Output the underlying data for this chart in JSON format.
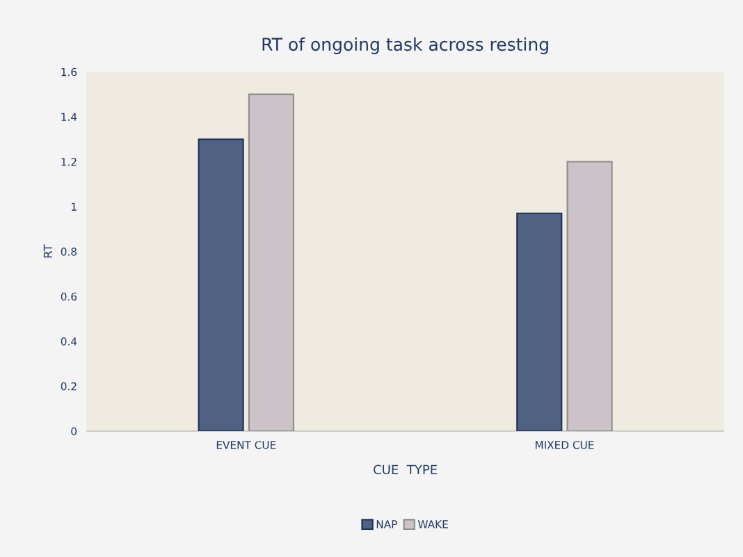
{
  "chart_data": {
    "type": "bar",
    "title": "RT of ongoing task across resting",
    "xlabel": "CUE  TYPE",
    "ylabel": "RT",
    "categories": [
      "EVENT CUE",
      "MIXED CUE"
    ],
    "series": [
      {
        "name": "NAP",
        "color": "#4f6282",
        "values": [
          1.3,
          0.97
        ]
      },
      {
        "name": "WAKE",
        "color": "#cbc3c7",
        "values": [
          1.5,
          1.2
        ]
      }
    ],
    "ylim": [
      0,
      1.6
    ],
    "yticks": [
      0,
      0.2,
      0.4,
      0.6,
      0.8,
      {
        "value": 1,
        "label": "1"
      },
      1.2,
      1.4,
      1.6
    ],
    "grid": false,
    "legend": "bottom"
  }
}
